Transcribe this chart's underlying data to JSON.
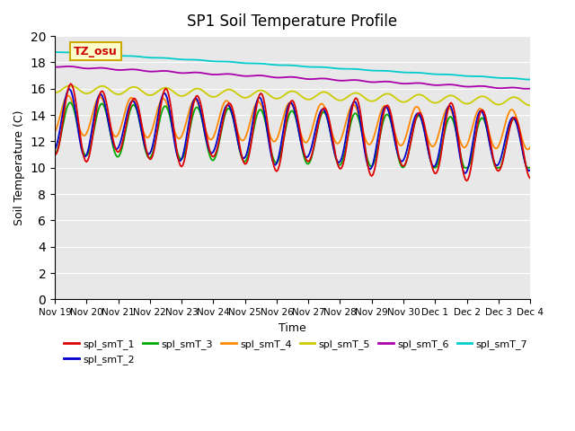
{
  "title": "SP1 Soil Temperature Profile",
  "xlabel": "Time",
  "ylabel": "Soil Temperature (C)",
  "ylim": [
    0,
    20
  ],
  "yticks": [
    0,
    2,
    4,
    6,
    8,
    10,
    12,
    14,
    16,
    18,
    20
  ],
  "annotation_text": "TZ_osu",
  "annotation_color": "#cc0000",
  "annotation_bg": "#ffffcc",
  "annotation_border": "#ccaa00",
  "bg_color": "#e8e8e8",
  "series_colors": {
    "spl_smT_1": "#dd0000",
    "spl_smT_2": "#0000cc",
    "spl_smT_3": "#00aa00",
    "spl_smT_4": "#ff8800",
    "spl_smT_5": "#cccc00",
    "spl_smT_6": "#aa00aa",
    "spl_smT_7": "#00cccc"
  },
  "x_labels": [
    "Nov 19",
    "Nov 20",
    "Nov 21",
    "Nov 22",
    "Nov 23",
    "Nov 24",
    "Nov 25",
    "Nov 26",
    "Nov 27",
    "Nov 28",
    "Nov 29",
    "Nov 30",
    "Dec 1",
    "Dec 2",
    "Dec 3",
    "Dec 4"
  ],
  "num_points": 361
}
